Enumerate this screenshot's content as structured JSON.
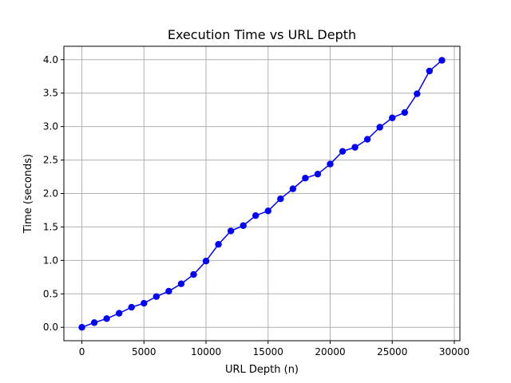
{
  "chart_data": {
    "type": "line",
    "title": "Execution Time vs URL Depth",
    "xlabel": "URL Depth (n)",
    "ylabel": "Time (seconds)",
    "xlim": [
      -1450,
      30450
    ],
    "ylim": [
      -0.2,
      4.2
    ],
    "xticks": [
      0,
      5000,
      10000,
      15000,
      20000,
      25000,
      30000
    ],
    "yticks": [
      0.0,
      0.5,
      1.0,
      1.5,
      2.0,
      2.5,
      3.0,
      3.5,
      4.0
    ],
    "xtick_labels": [
      "0",
      "5000",
      "10000",
      "15000",
      "20000",
      "25000",
      "30000"
    ],
    "ytick_labels": [
      "0.0",
      "0.5",
      "1.0",
      "1.5",
      "2.0",
      "2.5",
      "3.0",
      "3.5",
      "4.0"
    ],
    "grid": true,
    "series": [
      {
        "color": "#0000ff",
        "marker": "circle",
        "x": [
          0,
          1000,
          2000,
          3000,
          4000,
          5000,
          6000,
          7000,
          8000,
          9000,
          10000,
          11000,
          12000,
          13000,
          14000,
          15000,
          16000,
          17000,
          18000,
          19000,
          20000,
          21000,
          22000,
          23000,
          24000,
          25000,
          26000,
          27000,
          28000,
          29000
        ],
        "y": [
          0.0,
          0.07,
          0.13,
          0.21,
          0.3,
          0.36,
          0.46,
          0.54,
          0.65,
          0.79,
          0.99,
          1.24,
          1.44,
          1.52,
          1.67,
          1.74,
          1.92,
          2.07,
          2.23,
          2.29,
          2.44,
          2.63,
          2.69,
          2.81,
          2.99,
          3.13,
          3.21,
          3.49,
          3.83,
          3.99
        ]
      }
    ]
  }
}
